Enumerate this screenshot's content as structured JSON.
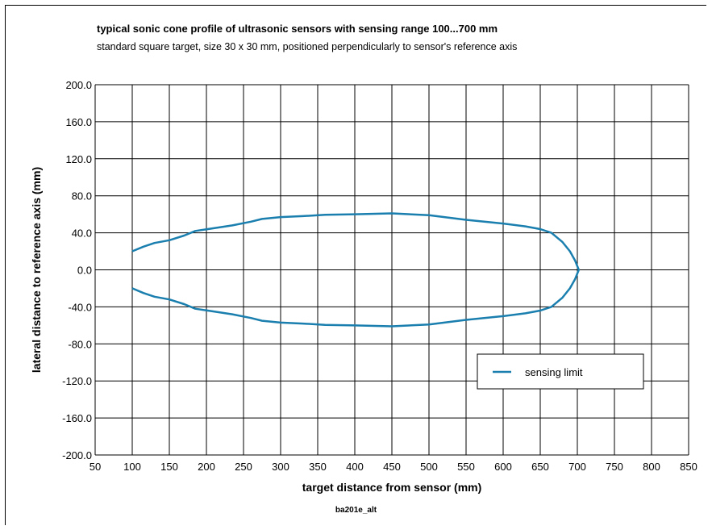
{
  "chart_data": {
    "type": "line",
    "title": "typical sonic cone profile of ultrasonic sensors with sensing range 100...700 mm",
    "subtitle": "standard square target, size 30 x 30 mm, positioned perpendicularly to sensor's reference axis",
    "xlabel": "target distance from sensor (mm)",
    "ylabel": "lateral distance to reference axis (mm)",
    "xlim": [
      50,
      850
    ],
    "ylim": [
      -200,
      200
    ],
    "x_ticks": [
      "50",
      "100",
      "150",
      "200",
      "250",
      "300",
      "350",
      "400",
      "450",
      "500",
      "550",
      "600",
      "650",
      "700",
      "750",
      "800",
      "850"
    ],
    "y_ticks": [
      "200.0",
      "160.0",
      "120.0",
      "80.0",
      "40.0",
      "0.0",
      "-40.0",
      "-80.0",
      "-120.0",
      "-160.0",
      "-200.0"
    ],
    "grid": true,
    "legend_position": "lower-right",
    "series": [
      {
        "name": "sensing limit",
        "color": "#1a7fae",
        "x": [
          100,
          115,
          130,
          150,
          170,
          185,
          210,
          235,
          260,
          275,
          300,
          330,
          360,
          400,
          450,
          500,
          550,
          600,
          630,
          650,
          665,
          680,
          690,
          697,
          702,
          697,
          690,
          680,
          665,
          650,
          630,
          600,
          550,
          500,
          450,
          400,
          360,
          330,
          300,
          275,
          260,
          235,
          210,
          185,
          170,
          150,
          130,
          115,
          100
        ],
        "y": [
          20,
          25,
          29,
          32,
          37,
          42,
          45,
          48,
          52,
          55,
          57,
          58,
          59.5,
          60,
          61,
          59,
          54,
          50,
          47,
          44,
          40,
          30,
          20,
          10,
          0,
          -10,
          -20,
          -30,
          -40,
          -44,
          -47,
          -50,
          -54,
          -59,
          -61,
          -60,
          -59.5,
          -58,
          -57,
          -55,
          -52,
          -48,
          -45,
          -42,
          -37,
          -32,
          -29,
          -25,
          -20
        ]
      }
    ]
  },
  "footer_label": "ba201e_alt"
}
